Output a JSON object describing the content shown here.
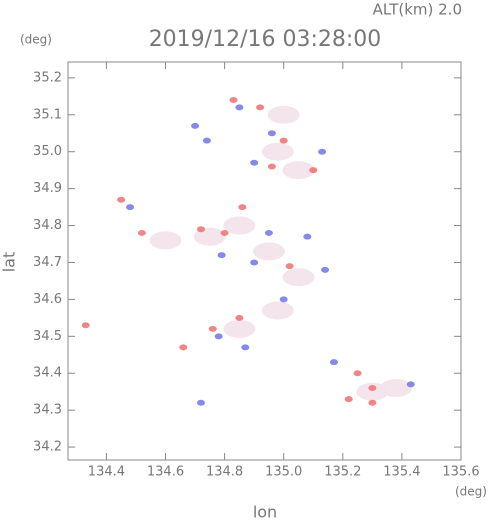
{
  "chart_data": {
    "type": "scatter",
    "title": "2019/12/16 03:28:00",
    "subtitle": "ALT(km) 2.0",
    "x_unit": "(deg)",
    "y_unit": "(deg)",
    "x_label": "lon",
    "y_label": "lat",
    "xlim": [
      134.27,
      135.6
    ],
    "ylim": [
      34.165,
      35.243
    ],
    "xticks": [
      134.4,
      134.6,
      134.8,
      {
        "value": 135.0,
        "label": "135.0"
      },
      135.2,
      135.4,
      135.6
    ],
    "yticks": [
      34.2,
      34.3,
      34.4,
      34.5,
      34.6,
      34.7,
      34.8,
      34.9,
      {
        "value": 35.0,
        "label": "35.0"
      },
      35.1,
      35.2
    ],
    "series": [
      {
        "color": "#f3e2ea",
        "x": [
          134.6,
          134.75,
          134.85,
          134.95,
          135.05,
          134.85,
          134.98,
          135.3,
          135.38,
          134.98,
          135.05,
          135.0
        ],
        "values": [
          34.76,
          34.77,
          34.8,
          34.73,
          34.66,
          34.52,
          34.57,
          34.35,
          34.36,
          35.0,
          34.95,
          35.1
        ]
      },
      {
        "color": "#ee6f6f",
        "x": [
          134.45,
          134.52,
          134.33,
          134.72,
          134.8,
          134.92,
          134.83,
          135.0,
          134.96,
          135.1,
          134.76,
          134.85,
          135.25,
          135.22,
          135.3,
          134.66,
          134.86,
          135.02,
          135.3
        ],
        "values": [
          34.87,
          34.78,
          34.53,
          34.79,
          34.78,
          35.12,
          35.14,
          35.03,
          34.96,
          34.95,
          34.52,
          34.55,
          34.4,
          34.33,
          34.36,
          34.47,
          34.85,
          34.69,
          34.32
        ]
      },
      {
        "color": "#6f74e8",
        "x": [
          134.7,
          134.85,
          134.96,
          135.13,
          134.9,
          134.79,
          134.9,
          135.0,
          134.87,
          134.78,
          135.43,
          135.17,
          134.72,
          134.48,
          135.08,
          134.95,
          134.74,
          135.14
        ],
        "values": [
          35.07,
          35.12,
          35.05,
          35.0,
          34.97,
          34.72,
          34.7,
          34.6,
          34.47,
          34.5,
          34.37,
          34.43,
          34.32,
          34.85,
          34.77,
          34.78,
          35.03,
          34.68
        ]
      }
    ]
  }
}
